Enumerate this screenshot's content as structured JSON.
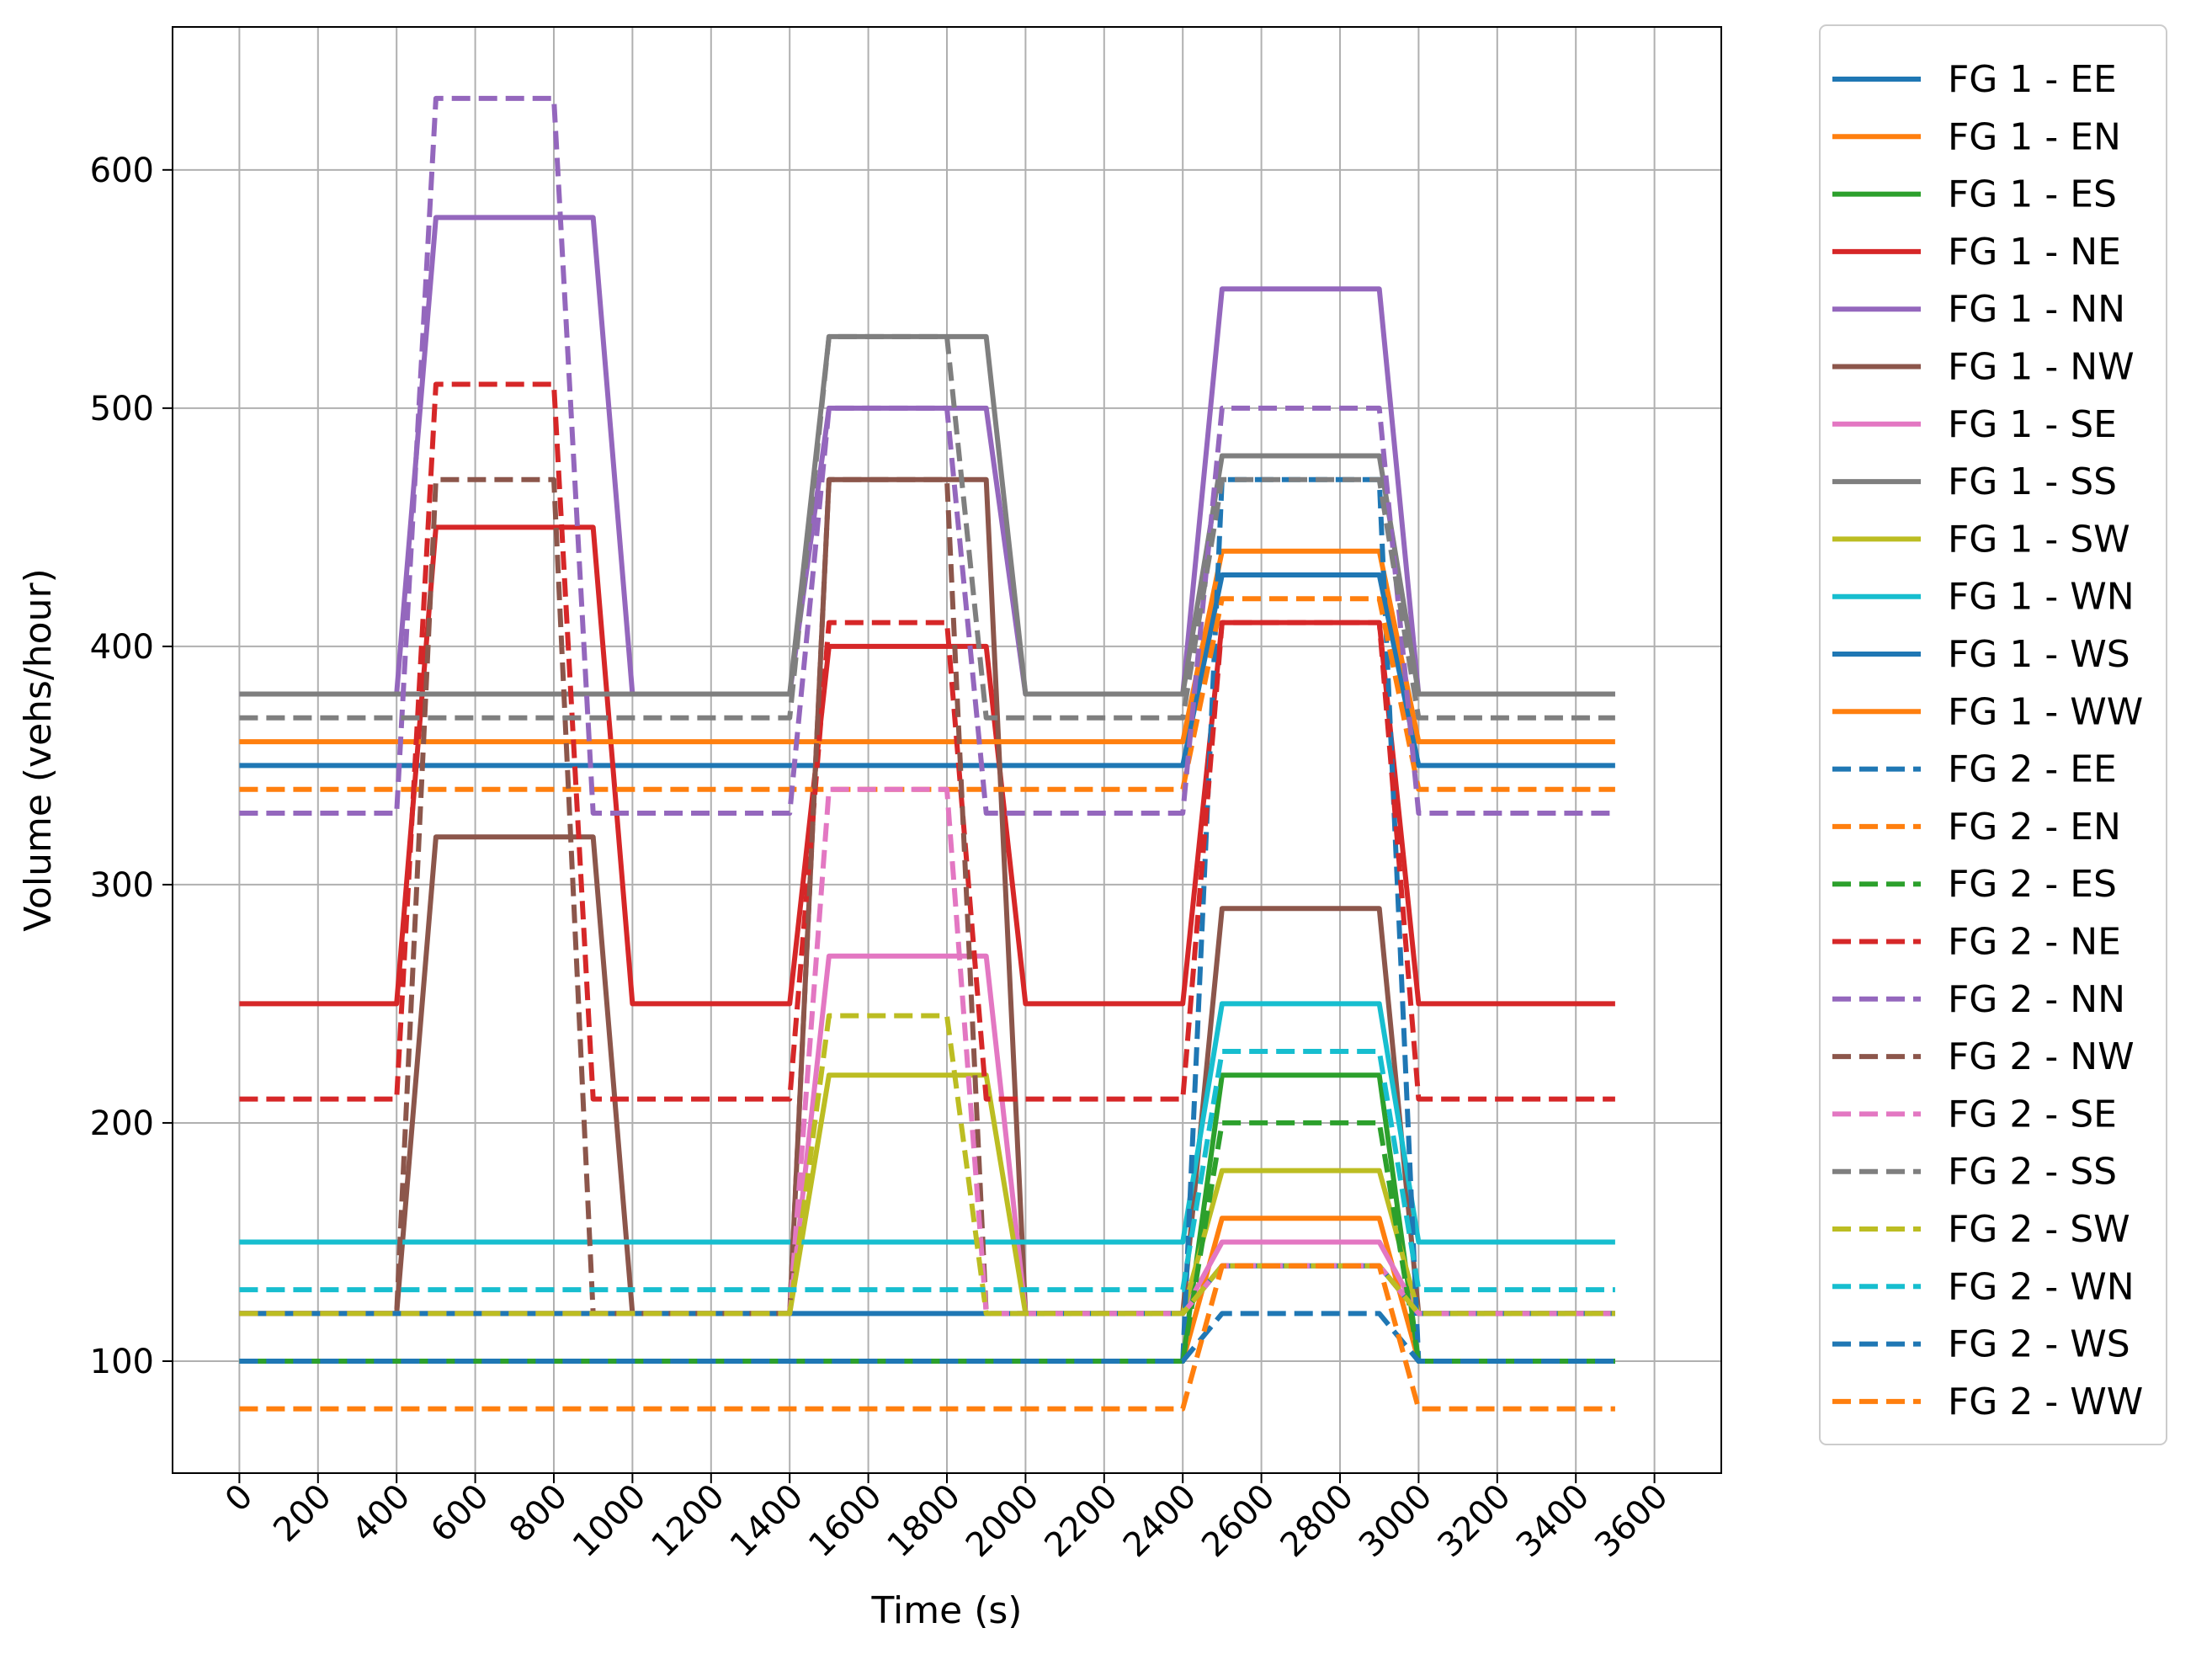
{
  "chart_data": {
    "type": "line",
    "title": "",
    "xlabel": "Time (s)",
    "ylabel": "Volume (vehs/hour)",
    "xlim": [
      -170,
      3770
    ],
    "ylim": [
      53,
      660
    ],
    "grid": true,
    "legend_position": "right-outside",
    "x_ticks": [
      0,
      200,
      400,
      600,
      800,
      1000,
      1200,
      1400,
      1600,
      1800,
      2000,
      2200,
      2400,
      2600,
      2800,
      3000,
      3200,
      3400,
      3600
    ],
    "y_ticks": [
      100,
      200,
      300,
      400,
      500,
      600
    ],
    "x": [
      0,
      400,
      500,
      800,
      900,
      1000,
      1400,
      1500,
      1800,
      1900,
      2000,
      2400,
      2500,
      2900,
      3000,
      3500
    ],
    "series": [
      {
        "name": "FG 1 - EE",
        "color": "#1f77b4",
        "style": "solid",
        "values": [
          350,
          350,
          350,
          350,
          350,
          350,
          350,
          350,
          350,
          350,
          350,
          350,
          430,
          430,
          350,
          350
        ]
      },
      {
        "name": "FG 1 - EN",
        "color": "#ff7f0e",
        "style": "solid",
        "values": [
          100,
          100,
          100,
          100,
          100,
          100,
          100,
          100,
          100,
          100,
          100,
          100,
          160,
          160,
          100,
          100
        ]
      },
      {
        "name": "FG 1 - ES",
        "color": "#2ca02c",
        "style": "solid",
        "values": [
          100,
          100,
          100,
          100,
          100,
          100,
          100,
          100,
          100,
          100,
          100,
          100,
          220,
          220,
          100,
          100
        ]
      },
      {
        "name": "FG 1 - NE",
        "color": "#d62728",
        "style": "solid",
        "values": [
          250,
          250,
          450,
          450,
          450,
          250,
          250,
          400,
          400,
          400,
          250,
          250,
          410,
          410,
          250,
          250
        ]
      },
      {
        "name": "FG 1 - NN",
        "color": "#9467bd",
        "style": "solid",
        "values": [
          380,
          380,
          580,
          580,
          580,
          380,
          380,
          500,
          500,
          500,
          380,
          380,
          550,
          550,
          380,
          380
        ]
      },
      {
        "name": "FG 1 - NW",
        "color": "#8c564b",
        "style": "solid",
        "values": [
          120,
          120,
          320,
          320,
          320,
          120,
          120,
          470,
          470,
          470,
          120,
          120,
          290,
          290,
          120,
          120
        ]
      },
      {
        "name": "FG 1 - SE",
        "color": "#e377c2",
        "style": "solid",
        "values": [
          120,
          120,
          120,
          120,
          120,
          120,
          120,
          270,
          270,
          270,
          120,
          120,
          150,
          150,
          120,
          120
        ]
      },
      {
        "name": "FG 1 - SS",
        "color": "#7f7f7f",
        "style": "solid",
        "values": [
          380,
          380,
          380,
          380,
          380,
          380,
          380,
          530,
          530,
          530,
          380,
          380,
          480,
          480,
          380,
          380
        ]
      },
      {
        "name": "FG 1 - SW",
        "color": "#bcbd22",
        "style": "solid",
        "values": [
          120,
          120,
          120,
          120,
          120,
          120,
          120,
          220,
          220,
          220,
          120,
          120,
          180,
          180,
          120,
          120
        ]
      },
      {
        "name": "FG 1 - WN",
        "color": "#17becf",
        "style": "solid",
        "values": [
          150,
          150,
          150,
          150,
          150,
          150,
          150,
          150,
          150,
          150,
          150,
          150,
          250,
          250,
          150,
          150
        ]
      },
      {
        "name": "FG 1 - WS",
        "color": "#1f77b4",
        "style": "solid",
        "values": [
          120,
          120,
          120,
          120,
          120,
          120,
          120,
          120,
          120,
          120,
          120,
          120,
          140,
          140,
          120,
          120
        ]
      },
      {
        "name": "FG 1 - WW",
        "color": "#ff7f0e",
        "style": "solid",
        "values": [
          360,
          360,
          360,
          360,
          360,
          360,
          360,
          360,
          360,
          360,
          360,
          360,
          440,
          440,
          360,
          360
        ]
      },
      {
        "name": "FG 2 - EE",
        "color": "#1f77b4",
        "style": "dashed",
        "values": [
          100,
          100,
          100,
          100,
          100,
          100,
          100,
          100,
          100,
          100,
          100,
          100,
          470,
          470,
          100,
          100
        ]
      },
      {
        "name": "FG 2 - EN",
        "color": "#ff7f0e",
        "style": "dashed",
        "values": [
          340,
          340,
          340,
          340,
          340,
          340,
          340,
          340,
          340,
          340,
          340,
          340,
          420,
          420,
          340,
          340
        ]
      },
      {
        "name": "FG 2 - ES",
        "color": "#2ca02c",
        "style": "dashed",
        "values": [
          100,
          100,
          100,
          100,
          100,
          100,
          100,
          100,
          100,
          100,
          100,
          100,
          200,
          200,
          100,
          100
        ]
      },
      {
        "name": "FG 2 - NE",
        "color": "#d62728",
        "style": "dashed",
        "values": [
          210,
          210,
          510,
          510,
          210,
          210,
          210,
          410,
          410,
          210,
          210,
          210,
          410,
          410,
          210,
          210
        ]
      },
      {
        "name": "FG 2 - NN",
        "color": "#9467bd",
        "style": "dashed",
        "values": [
          330,
          330,
          630,
          630,
          330,
          330,
          330,
          500,
          500,
          330,
          330,
          330,
          500,
          500,
          330,
          330
        ]
      },
      {
        "name": "FG 2 - NW",
        "color": "#8c564b",
        "style": "dashed",
        "values": [
          120,
          120,
          470,
          470,
          120,
          120,
          120,
          470,
          470,
          120,
          120,
          120,
          140,
          140,
          120,
          120
        ]
      },
      {
        "name": "FG 2 - SE",
        "color": "#e377c2",
        "style": "dashed",
        "values": [
          120,
          120,
          120,
          120,
          120,
          120,
          120,
          340,
          340,
          120,
          120,
          120,
          140,
          140,
          120,
          120
        ]
      },
      {
        "name": "FG 2 - SS",
        "color": "#7f7f7f",
        "style": "dashed",
        "values": [
          370,
          370,
          370,
          370,
          370,
          370,
          370,
          530,
          530,
          370,
          370,
          370,
          470,
          470,
          370,
          370
        ]
      },
      {
        "name": "FG 2 - SW",
        "color": "#bcbd22",
        "style": "dashed",
        "values": [
          120,
          120,
          120,
          120,
          120,
          120,
          120,
          245,
          245,
          120,
          120,
          120,
          140,
          140,
          120,
          120
        ]
      },
      {
        "name": "FG 2 - WN",
        "color": "#17becf",
        "style": "dashed",
        "values": [
          130,
          130,
          130,
          130,
          130,
          130,
          130,
          130,
          130,
          130,
          130,
          130,
          230,
          230,
          130,
          130
        ]
      },
      {
        "name": "FG 2 - WS",
        "color": "#1f77b4",
        "style": "dashed",
        "values": [
          100,
          100,
          100,
          100,
          100,
          100,
          100,
          100,
          100,
          100,
          100,
          100,
          120,
          120,
          100,
          100
        ]
      },
      {
        "name": "FG 2 - WW",
        "color": "#ff7f0e",
        "style": "dashed",
        "values": [
          80,
          80,
          80,
          80,
          80,
          80,
          80,
          80,
          80,
          80,
          80,
          80,
          140,
          140,
          80,
          80
        ]
      }
    ]
  }
}
